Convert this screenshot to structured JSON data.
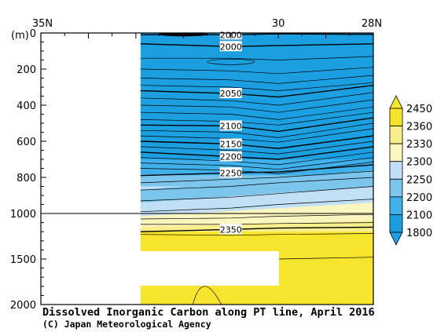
{
  "chart_data": {
    "type": "heatmap",
    "title": "Dissolved Inorganic Carbon along PT line, April 2016",
    "credit": "(C) Japan Meteorological Agency",
    "y_unit": "(m)",
    "x_ticks": [
      {
        "value": 35,
        "label": "35N"
      },
      {
        "value": 30,
        "label": "30"
      },
      {
        "value": 28,
        "label": "28N"
      }
    ],
    "xlim": [
      35,
      28
    ],
    "y_ticks_upper": [
      0,
      200,
      400,
      600,
      800,
      1000
    ],
    "y_ticks_lower": [
      1500,
      2000
    ],
    "ylim": [
      0,
      2000
    ],
    "y_break": 1000,
    "data_x_range": [
      32.9,
      28
    ],
    "colorbar": {
      "levels": [
        1800,
        2100,
        2200,
        2250,
        2300,
        2330,
        2360,
        2450
      ],
      "labels": [
        "2450",
        "2360",
        "2330",
        "2300",
        "2250",
        "2200",
        "2100",
        "1800"
      ],
      "colors": [
        "#1c9fe0",
        "#3fb0ea",
        "#7cc6ee",
        "#c1dff5",
        "#fbf6c0",
        "#f9ee8c",
        "#f6e52c"
      ]
    },
    "contour_labels": [
      {
        "text": "2000",
        "lat": 31.0,
        "depth": 10
      },
      {
        "text": "2000",
        "lat": 31.0,
        "depth": 75
      },
      {
        "text": "2050",
        "lat": 31.0,
        "depth": 335
      },
      {
        "text": "2100",
        "lat": 31.0,
        "depth": 515
      },
      {
        "text": "2150",
        "lat": 31.0,
        "depth": 615
      },
      {
        "text": "2200",
        "lat": 31.0,
        "depth": 685
      },
      {
        "text": "2250",
        "lat": 31.0,
        "depth": 775
      },
      {
        "text": "2350",
        "lat": 31.0,
        "depth": 1175
      }
    ]
  }
}
